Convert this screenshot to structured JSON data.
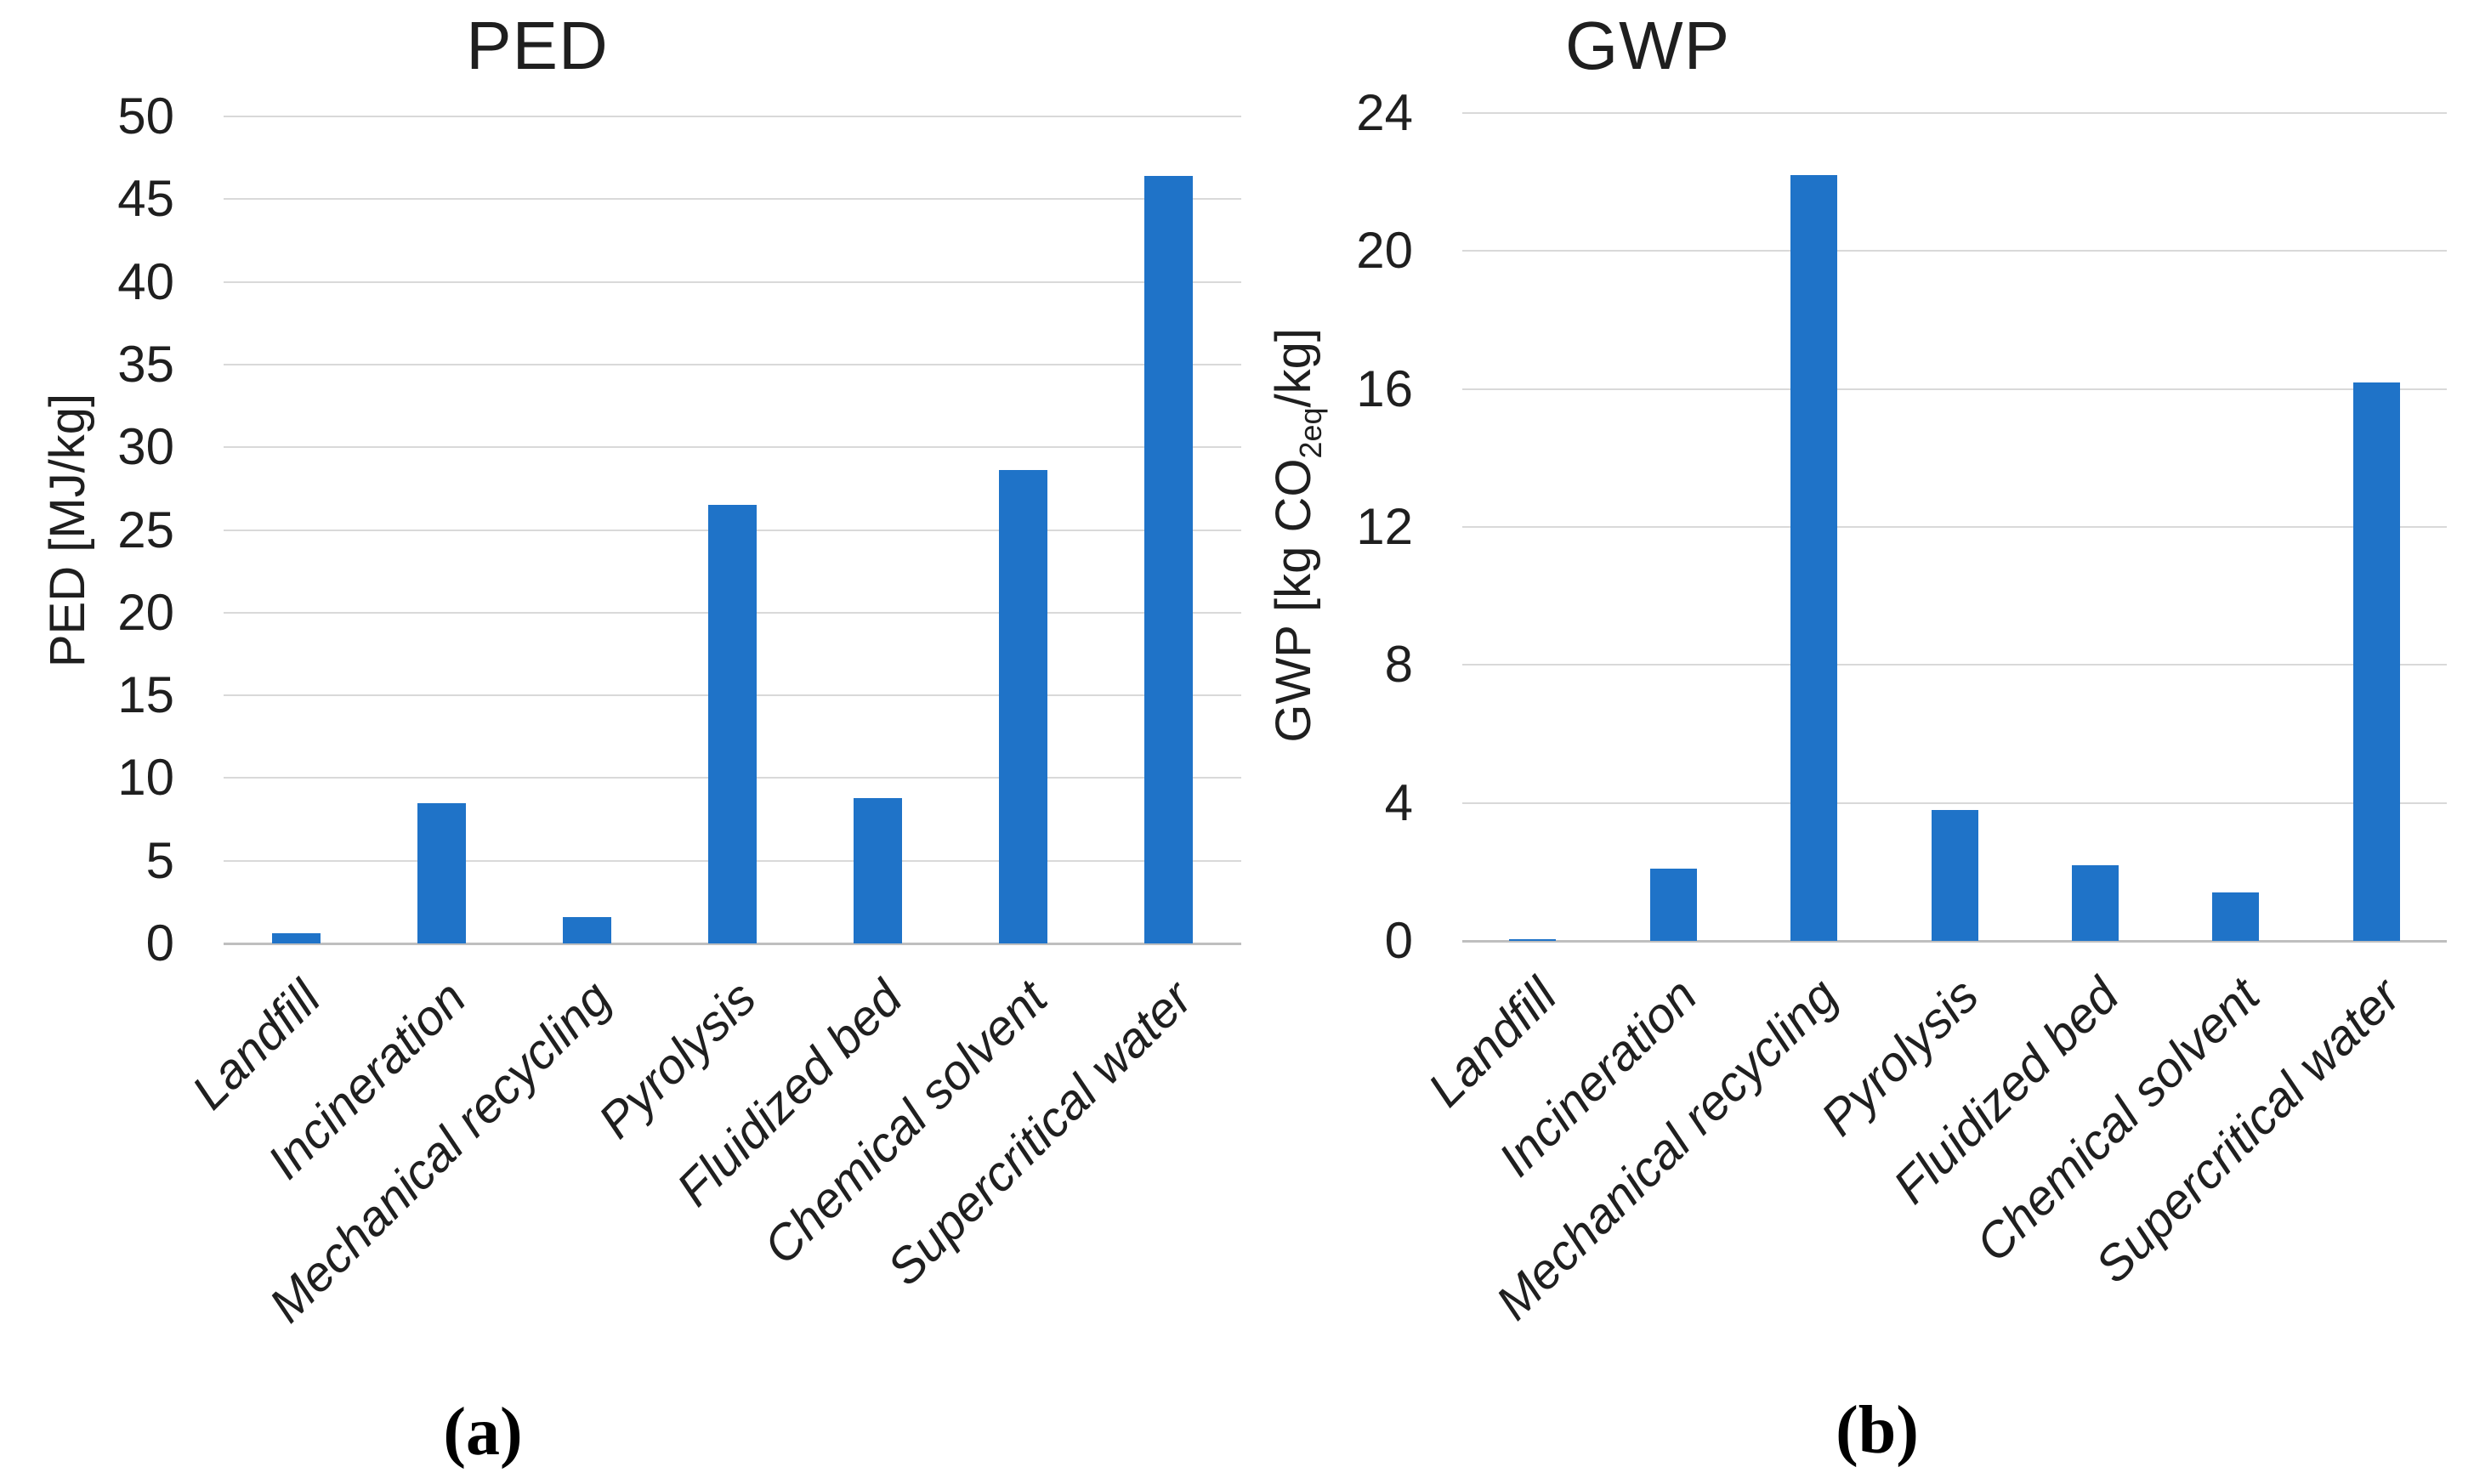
{
  "figure": {
    "background": "#ffffff"
  },
  "colors": {
    "bar": "#1F73C8",
    "gridline": "#D9D9D9",
    "axis_line": "#BFBFBF",
    "text": "#1F1F1F"
  },
  "chart_data": [
    {
      "type": "bar",
      "panel": "a",
      "caption": "(a)",
      "title": "PED",
      "ylabel": "PED [MJ/kg]",
      "ylabel_rich": {
        "pre": "PED [MJ/kg]",
        "sub": "",
        "post": ""
      },
      "categories": [
        "Landfill",
        "Incineration",
        "Mechanical recycling",
        "Pyrolysis",
        "Fluidized bed",
        "Chemical solvent",
        "Supercritical water"
      ],
      "values": [
        0.6,
        8.5,
        1.6,
        26.5,
        8.8,
        28.6,
        46.4
      ],
      "ylim": [
        0,
        50
      ],
      "ytick_step": 5,
      "ytick_labels": [
        "0",
        "5",
        "10",
        "15",
        "20",
        "25",
        "30",
        "35",
        "40",
        "45",
        "50"
      ],
      "grid": "horizontal",
      "legend": "none"
    },
    {
      "type": "bar",
      "panel": "b",
      "caption": "(b)",
      "title": "GWP",
      "ylabel": "GWP [kg CO2eq/kg]",
      "ylabel_rich": {
        "pre": "GWP [kg CO",
        "sub": "2eq",
        "post": "/kg]"
      },
      "categories": [
        "Landfill",
        "Incineration",
        "Mechanical recycling",
        "Pyrolysis",
        "Fluidized bed",
        "Chemical solvent",
        "Supercritical water"
      ],
      "values": [
        0.05,
        2.1,
        22.2,
        3.8,
        2.2,
        1.4,
        16.2
      ],
      "ylim": [
        0,
        24
      ],
      "ytick_step": 4,
      "ytick_labels": [
        "0",
        "4",
        "8",
        "12",
        "16",
        "20",
        "24"
      ],
      "grid": "horizontal",
      "legend": "none"
    }
  ]
}
